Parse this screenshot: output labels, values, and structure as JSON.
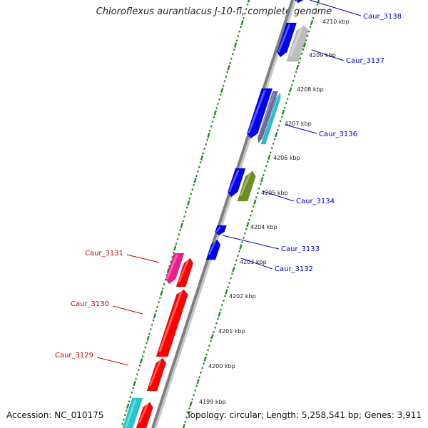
{
  "title": "Chloroflexus aurantiacus J-10-fl, complete genome",
  "footer": {
    "accession": "Accession: NC_010175",
    "summary": "Topology: circular; Length: 5,258,541 bp; Genes: 3,911"
  },
  "colors": {
    "backbone": "#808080",
    "plus_strand_labels": "#0000c0",
    "minus_strand_labels": "#d00000",
    "ticks": "#228b22"
  },
  "scale_labels": [
    "4210 kbp",
    "4209 kbp",
    "4208 kbp",
    "4207 kbp",
    "4206 kbp",
    "4205 kbp",
    "4204 kbp",
    "4203 kbp",
    "4202 kbp",
    "4201 kbp",
    "4200 kbp",
    "4199 kbp"
  ],
  "gene_labels": {
    "plus": [
      "Caur_3138",
      "Caur_3137",
      "Caur_3136",
      "Caur_3134",
      "Caur_3133",
      "Caur_3132"
    ],
    "minus": [
      "Caur_3131",
      "Caur_3130",
      "Caur_3129"
    ]
  }
}
